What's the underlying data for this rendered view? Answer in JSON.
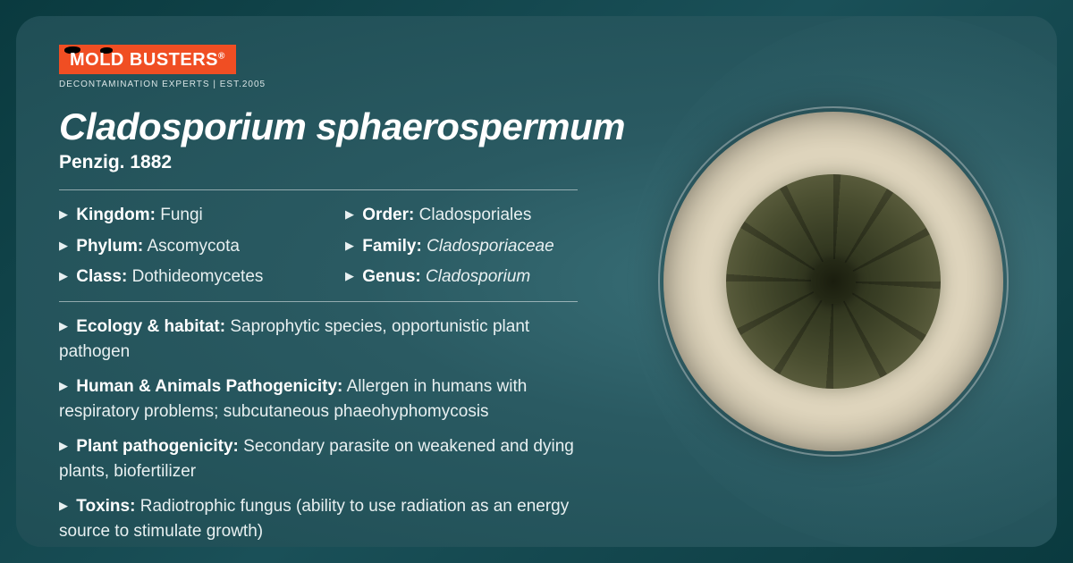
{
  "brand": {
    "logo_text": "MOLD BUSTERS",
    "logo_bg": "#f04e23",
    "tagline": "DECONTAMINATION EXPERTS | EST.2005"
  },
  "title": "Cladosporium sphaerospermum",
  "subtitle": "Penzig. 1882",
  "taxonomy": [
    {
      "label": "Kingdom:",
      "value": "Fungi",
      "italic": false
    },
    {
      "label": "Order:",
      "value": "Cladosporiales",
      "italic": false
    },
    {
      "label": "Phylum:",
      "value": "Ascomycota",
      "italic": false
    },
    {
      "label": "Family:",
      "value": "Cladosporiaceae",
      "italic": true
    },
    {
      "label": "Class:",
      "value": "Dothideomycetes",
      "italic": false
    },
    {
      "label": "Genus:",
      "value": "Cladosporium",
      "italic": true
    }
  ],
  "details": [
    {
      "label": "Ecology & habitat:",
      "value": "Saprophytic species, opportunistic plant pathogen"
    },
    {
      "label": "Human & Animals Pathogenicity:",
      "value": "Allergen in humans with respiratory problems; subcutaneous phaeohyphomycosis"
    },
    {
      "label": "Plant pathogenicity:",
      "value": "Secondary parasite on weakened and dying plants, biofertilizer"
    },
    {
      "label": "Toxins:",
      "value": "Radiotrophic fungus (ability to use radiation as an energy source to stimulate growth)"
    }
  ],
  "colors": {
    "text": "#ffffff",
    "background_gradient": [
      "#1f4e55",
      "#2a5a62",
      "#3a7179"
    ],
    "divider": "rgba(255,255,255,0.5)"
  },
  "petri": {
    "dish_colors": [
      "#e8e0cc",
      "#ded4bc",
      "#c8bfa8",
      "#a89f88"
    ],
    "colony_colors": [
      "#2a2f1a",
      "#383d24",
      "#4a4e30",
      "#5c5e3e"
    ],
    "ring_color": "rgba(255,255,255,0.4)"
  }
}
